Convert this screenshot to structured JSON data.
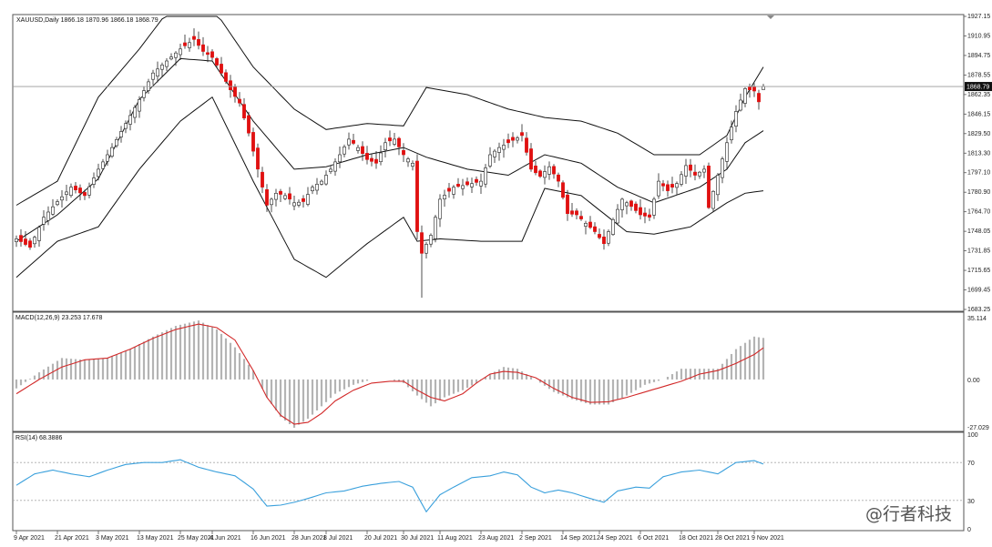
{
  "chart_data": [
    {
      "type": "candlestick",
      "panel": "price",
      "header": "XAUUSD,Daily  1866.18 1870.96 1866.18 1868.79",
      "symbol": "XAUUSD",
      "timeframe": "Daily",
      "ohlc_header": {
        "open": 1866.18,
        "high": 1870.96,
        "low": 1866.18,
        "close": 1868.79
      },
      "last_price_label": "1868.79",
      "last_price": 1868.79,
      "ylim": [
        1683.25,
        1927.15
      ],
      "y_ticks": [
        "1927.15",
        "1910.95",
        "1894.75",
        "1878.55",
        "1862.35",
        "1846.15",
        "1829.50",
        "1813.30",
        "1797.10",
        "1780.90",
        "1764.70",
        "1748.05",
        "1731.85",
        "1715.65",
        "1699.45",
        "1683.25"
      ],
      "x_ticks": [
        "9 Apr 2021",
        "21 Apr 2021",
        "3 May 2021",
        "13 May 2021",
        "25 May 2021",
        "4 Jun 2021",
        "16 Jun 2021",
        "28 Jun 2021",
        "8 Jul 2021",
        "20 Jul 2021",
        "30 Jul 2021",
        "11 Aug 2021",
        "23 Aug 2021",
        "2 Sep 2021",
        "14 Sep 2021",
        "24 Sep 2021",
        "6 Oct 2021",
        "18 Oct 2021",
        "28 Oct 2021",
        "9 Nov 2021"
      ],
      "overlay": "Bollinger Bands",
      "anchors": {
        "x_tick_index": [
          0,
          9,
          18,
          27,
          36,
          43,
          52,
          61,
          68,
          77,
          85,
          93,
          102,
          111,
          120,
          128,
          137,
          146,
          154,
          162
        ],
        "close_path": [
          [
            0,
            1742
          ],
          [
            3,
            1735
          ],
          [
            6,
            1760
          ],
          [
            9,
            1773
          ],
          [
            12,
            1785
          ],
          [
            15,
            1778
          ],
          [
            18,
            1800
          ],
          [
            21,
            1818
          ],
          [
            24,
            1838
          ],
          [
            27,
            1858
          ],
          [
            30,
            1880
          ],
          [
            33,
            1890
          ],
          [
            36,
            1900
          ],
          [
            39,
            1908
          ],
          [
            41,
            1898
          ],
          [
            43,
            1893
          ],
          [
            45,
            1880
          ],
          [
            47,
            1866
          ],
          [
            49,
            1855
          ],
          [
            51,
            1830
          ],
          [
            53,
            1800
          ],
          [
            55,
            1770
          ],
          [
            57,
            1780
          ],
          [
            59,
            1778
          ],
          [
            61,
            1772
          ],
          [
            63,
            1773
          ],
          [
            65,
            1785
          ],
          [
            67,
            1790
          ],
          [
            69,
            1800
          ],
          [
            71,
            1812
          ],
          [
            73,
            1825
          ],
          [
            75,
            1818
          ],
          [
            77,
            1808
          ],
          [
            79,
            1805
          ],
          [
            81,
            1822
          ],
          [
            83,
            1825
          ],
          [
            85,
            1812
          ],
          [
            87,
            1805
          ],
          [
            88,
            1748
          ],
          [
            89,
            1730
          ],
          [
            91,
            1745
          ],
          [
            93,
            1775
          ],
          [
            96,
            1785
          ],
          [
            99,
            1787
          ],
          [
            102,
            1790
          ],
          [
            104,
            1812
          ],
          [
            106,
            1818
          ],
          [
            109,
            1824
          ],
          [
            111,
            1828
          ],
          [
            113,
            1800
          ],
          [
            115,
            1794
          ],
          [
            117,
            1802
          ],
          [
            119,
            1790
          ],
          [
            121,
            1763
          ],
          [
            123,
            1762
          ],
          [
            125,
            1755
          ],
          [
            127,
            1748
          ],
          [
            129,
            1738
          ],
          [
            131,
            1758
          ],
          [
            133,
            1775
          ],
          [
            135,
            1769
          ],
          [
            137,
            1762
          ],
          [
            139,
            1760
          ],
          [
            141,
            1790
          ],
          [
            143,
            1782
          ],
          [
            145,
            1788
          ],
          [
            147,
            1803
          ],
          [
            149,
            1795
          ],
          [
            151,
            1800
          ],
          [
            152,
            1768
          ],
          [
            154,
            1795
          ],
          [
            156,
            1822
          ],
          [
            158,
            1848
          ],
          [
            160,
            1867
          ],
          [
            162,
            1865
          ],
          [
            163,
            1856
          ],
          [
            164,
            1868.79
          ]
        ],
        "bb_upper": [
          [
            0,
            1770
          ],
          [
            9,
            1790
          ],
          [
            18,
            1860
          ],
          [
            27,
            1900
          ],
          [
            36,
            1945
          ],
          [
            43,
            1935
          ],
          [
            52,
            1885
          ],
          [
            61,
            1850
          ],
          [
            68,
            1833
          ],
          [
            77,
            1838
          ],
          [
            85,
            1836
          ],
          [
            90,
            1868
          ],
          [
            99,
            1862
          ],
          [
            108,
            1850
          ],
          [
            116,
            1843
          ],
          [
            124,
            1840
          ],
          [
            132,
            1830
          ],
          [
            140,
            1812
          ],
          [
            150,
            1812
          ],
          [
            156,
            1828
          ],
          [
            160,
            1860
          ],
          [
            164,
            1885
          ]
        ],
        "bb_lower": [
          [
            0,
            1710
          ],
          [
            9,
            1740
          ],
          [
            18,
            1752
          ],
          [
            27,
            1800
          ],
          [
            36,
            1840
          ],
          [
            43,
            1860
          ],
          [
            52,
            1790
          ],
          [
            61,
            1725
          ],
          [
            68,
            1710
          ],
          [
            77,
            1738
          ],
          [
            85,
            1760
          ],
          [
            88,
            1740
          ],
          [
            93,
            1742
          ],
          [
            102,
            1740
          ],
          [
            111,
            1740
          ],
          [
            116,
            1784
          ],
          [
            124,
            1778
          ],
          [
            130,
            1760
          ],
          [
            134,
            1748
          ],
          [
            140,
            1746
          ],
          [
            148,
            1752
          ],
          [
            156,
            1772
          ],
          [
            160,
            1780
          ],
          [
            164,
            1782
          ]
        ],
        "bb_middle": [
          [
            0,
            1740
          ],
          [
            9,
            1762
          ],
          [
            18,
            1792
          ],
          [
            27,
            1858
          ],
          [
            36,
            1892
          ],
          [
            43,
            1890
          ],
          [
            52,
            1840
          ],
          [
            61,
            1800
          ],
          [
            68,
            1802
          ],
          [
            77,
            1812
          ],
          [
            85,
            1818
          ],
          [
            90,
            1810
          ],
          [
            99,
            1800
          ],
          [
            108,
            1795
          ],
          [
            116,
            1812
          ],
          [
            124,
            1805
          ],
          [
            132,
            1785
          ],
          [
            140,
            1772
          ],
          [
            150,
            1785
          ],
          [
            156,
            1800
          ],
          [
            160,
            1822
          ],
          [
            164,
            1832
          ]
        ]
      }
    },
    {
      "type": "bar+line",
      "panel": "MACD",
      "header": "MACD(12,26,9) 23.253 17.678",
      "params": [
        12,
        26,
        9
      ],
      "macd_value": 23.253,
      "signal_value": 17.678,
      "ylim": [
        -27.029,
        35.114
      ],
      "y_ticks": [
        "35.114",
        "0.00",
        "-27.029"
      ],
      "histogram_color": "#b4b4b4",
      "signal_color": "#d22828",
      "anchors": {
        "histogram": [
          [
            0,
            -5
          ],
          [
            5,
            4
          ],
          [
            10,
            12
          ],
          [
            15,
            11
          ],
          [
            20,
            12
          ],
          [
            25,
            17
          ],
          [
            30,
            24
          ],
          [
            35,
            30
          ],
          [
            40,
            33
          ],
          [
            44,
            28
          ],
          [
            48,
            18
          ],
          [
            52,
            5
          ],
          [
            55,
            -10
          ],
          [
            58,
            -21
          ],
          [
            61,
            -27
          ],
          [
            64,
            -22
          ],
          [
            67,
            -15
          ],
          [
            70,
            -8
          ],
          [
            74,
            -3
          ],
          [
            78,
            0
          ],
          [
            82,
            0
          ],
          [
            85,
            -2
          ],
          [
            88,
            -9
          ],
          [
            91,
            -15
          ],
          [
            94,
            -10
          ],
          [
            98,
            -6
          ],
          [
            101,
            -2
          ],
          [
            104,
            3
          ],
          [
            107,
            7
          ],
          [
            110,
            6
          ],
          [
            114,
            0
          ],
          [
            118,
            -7
          ],
          [
            122,
            -11
          ],
          [
            126,
            -14
          ],
          [
            130,
            -14
          ],
          [
            134,
            -9
          ],
          [
            138,
            -3
          ],
          [
            142,
            0
          ],
          [
            146,
            6
          ],
          [
            150,
            6
          ],
          [
            154,
            6
          ],
          [
            158,
            17
          ],
          [
            162,
            24
          ],
          [
            164,
            23.253
          ]
        ],
        "signal": [
          [
            0,
            -8
          ],
          [
            5,
            0
          ],
          [
            10,
            7
          ],
          [
            15,
            11
          ],
          [
            20,
            12
          ],
          [
            25,
            17
          ],
          [
            30,
            23
          ],
          [
            35,
            28
          ],
          [
            40,
            31
          ],
          [
            44,
            29
          ],
          [
            48,
            22
          ],
          [
            52,
            5
          ],
          [
            55,
            -10
          ],
          [
            58,
            -20
          ],
          [
            61,
            -25
          ],
          [
            64,
            -24
          ],
          [
            67,
            -19
          ],
          [
            70,
            -12
          ],
          [
            74,
            -6
          ],
          [
            78,
            -2
          ],
          [
            82,
            -1
          ],
          [
            85,
            -1
          ],
          [
            88,
            -6
          ],
          [
            91,
            -10
          ],
          [
            94,
            -12
          ],
          [
            98,
            -8
          ],
          [
            101,
            -2
          ],
          [
            104,
            3
          ],
          [
            107,
            4.5
          ],
          [
            110,
            4
          ],
          [
            114,
            1
          ],
          [
            118,
            -5
          ],
          [
            122,
            -10
          ],
          [
            126,
            -12.8
          ],
          [
            130,
            -12.5
          ],
          [
            134,
            -10
          ],
          [
            138,
            -7
          ],
          [
            142,
            -4
          ],
          [
            146,
            -1
          ],
          [
            150,
            3
          ],
          [
            154,
            5
          ],
          [
            158,
            9
          ],
          [
            162,
            14
          ],
          [
            164,
            17.678
          ]
        ]
      }
    },
    {
      "type": "line",
      "panel": "RSI",
      "header": "RSI(14) 68.3886",
      "period": 14,
      "value": 68.3886,
      "ylim": [
        0,
        100
      ],
      "y_ticks": [
        "100",
        "70",
        "30",
        "0"
      ],
      "levels": [
        70,
        30
      ],
      "line_color": "#3aa0dc",
      "anchors": {
        "rsi": [
          [
            0,
            46
          ],
          [
            4,
            58
          ],
          [
            8,
            62
          ],
          [
            12,
            58
          ],
          [
            16,
            55
          ],
          [
            20,
            62
          ],
          [
            24,
            68
          ],
          [
            28,
            70
          ],
          [
            32,
            70
          ],
          [
            36,
            73
          ],
          [
            40,
            65
          ],
          [
            44,
            60
          ],
          [
            48,
            56
          ],
          [
            52,
            42
          ],
          [
            55,
            24
          ],
          [
            58,
            25
          ],
          [
            61,
            28
          ],
          [
            64,
            32
          ],
          [
            68,
            38
          ],
          [
            72,
            40
          ],
          [
            76,
            45
          ],
          [
            80,
            48
          ],
          [
            84,
            50
          ],
          [
            87,
            44
          ],
          [
            90,
            18
          ],
          [
            93,
            36
          ],
          [
            96,
            44
          ],
          [
            100,
            54
          ],
          [
            104,
            56
          ],
          [
            107,
            60
          ],
          [
            110,
            57
          ],
          [
            113,
            44
          ],
          [
            116,
            38
          ],
          [
            119,
            41
          ],
          [
            122,
            38
          ],
          [
            126,
            32
          ],
          [
            129,
            28
          ],
          [
            132,
            40
          ],
          [
            136,
            44
          ],
          [
            139,
            43
          ],
          [
            142,
            55
          ],
          [
            146,
            60
          ],
          [
            150,
            62
          ],
          [
            154,
            58
          ],
          [
            158,
            70
          ],
          [
            162,
            72
          ],
          [
            164,
            68.3886
          ]
        ]
      }
    }
  ],
  "watermark": {
    "text": "@行者科技"
  }
}
